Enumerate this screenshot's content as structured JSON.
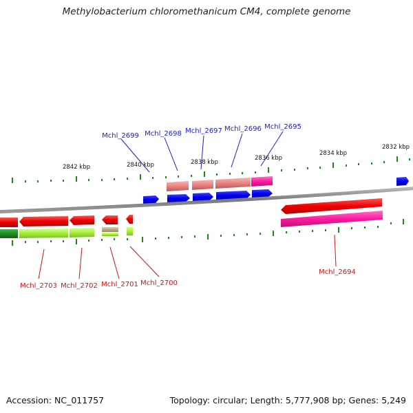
{
  "title": "Methylobacterium chloromethanicum CM4, complete genome",
  "footer": {
    "accession": "Accession: NC_011757",
    "summary": "Topology: circular; Length: 5,777,908 bp; Genes: 5,249"
  },
  "colors": {
    "upper_label": "#1a1acc",
    "lower_label": "#cc1111",
    "cds_forward": "#0000ee",
    "cds_reverse": "#ff0000",
    "cds_pink": "#ff2fa8",
    "light_red": "#ef8a8a",
    "light_green": "#a5f03a",
    "dark_green": "#1f8f1f",
    "backbone": "#8a8a8a",
    "tick": "#1b8a1b"
  },
  "ticks": [
    "2842 kbp",
    "2840 kbp",
    "2838 kbp",
    "2836 kbp",
    "2834 kbp",
    "2832 kbp"
  ],
  "upper_genes": [
    "Mchl_2699",
    "Mchl_2698",
    "Mchl_2697",
    "Mchl_2696",
    "Mchl_2695"
  ],
  "lower_genes": [
    "Mchl_2703",
    "Mchl_2702",
    "Mchl_2701",
    "Mchl_2700",
    "Mchl_2694"
  ]
}
